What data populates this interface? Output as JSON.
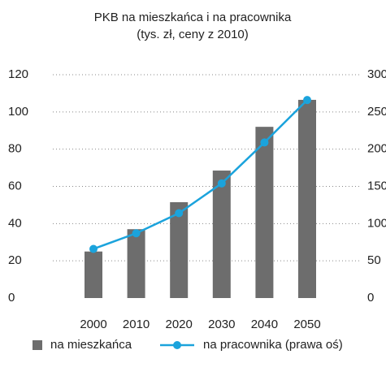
{
  "chart_data": {
    "type": "combo",
    "title": "PKB na mieszkańca i na pracownika",
    "subtitle": "(tys. zł, ceny z 2010)",
    "categories": [
      "2000",
      "2010",
      "2020",
      "2030",
      "2040",
      "2050"
    ],
    "series": [
      {
        "name": "na mieszkańca",
        "type": "bar",
        "color": "#6d6d6d",
        "values": [
          25,
          37,
          51.5,
          68.5,
          92,
          106.5
        ]
      },
      {
        "name": "na pracownika (prawa oś)",
        "type": "line",
        "axis": "y2",
        "color": "#1ba3dc",
        "values": [
          66,
          87,
          114,
          154,
          209,
          266
        ]
      }
    ],
    "ylim": [
      0,
      120
    ],
    "yticks": [
      0,
      20,
      40,
      60,
      80,
      100,
      120
    ],
    "y2lim": [
      0,
      300
    ],
    "y2ticks": [
      0,
      50,
      100,
      150,
      200,
      250,
      300
    ],
    "grid": true,
    "legend": "bottom"
  }
}
